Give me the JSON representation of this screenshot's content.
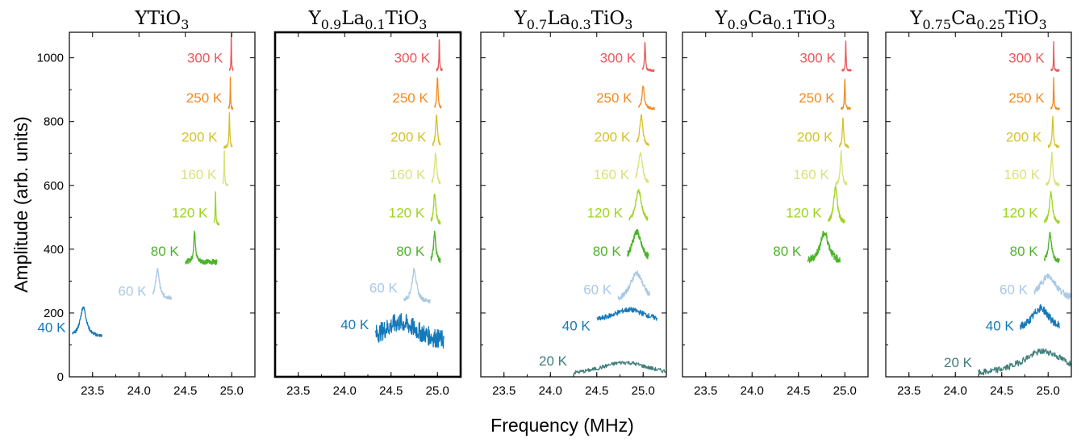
{
  "chart_data": {
    "type": "line",
    "ylabel": "Amplitude (arb. units)",
    "xlabel": "Frequency (MHz)",
    "ylim": [
      0,
      1080
    ],
    "xlim": [
      23.25,
      25.25
    ],
    "xticks": [
      "23.5",
      "24.0",
      "24.5",
      "25.0"
    ],
    "yticks": [
      "0",
      "200",
      "400",
      "600",
      "800",
      "1000"
    ],
    "unit_suffix": "K",
    "colors": {
      "300": "#e8585a",
      "250": "#f28a1e",
      "200": "#d6c227",
      "160": "#d9e27a",
      "120": "#9fd420",
      "80": "#4db32a",
      "60": "#a9c9e6",
      "40": "#1479b9",
      "20": "#3f7e7a"
    },
    "panels": [
      {
        "title_parts": [
          {
            "t": "YTiO"
          },
          {
            "t": "3",
            "sub": true
          }
        ],
        "bold_frame": false,
        "show_yticklabels": true,
        "series": [
          {
            "temp": 300,
            "label": "300 K",
            "label_y": 1000,
            "center": 24.995,
            "fmin": 24.975,
            "fmax": 25.015,
            "base": 960,
            "peak": 1075,
            "width": 0.003,
            "noise": 3,
            "n": 60
          },
          {
            "temp": 250,
            "label": "250 K",
            "label_y": 875,
            "center": 24.985,
            "fmin": 24.965,
            "fmax": 25.01,
            "base": 840,
            "peak": 940,
            "width": 0.003,
            "noise": 4,
            "n": 60
          },
          {
            "temp": 200,
            "label": "200 K",
            "label_y": 753,
            "center": 24.975,
            "fmin": 24.915,
            "fmax": 25.005,
            "base": 720,
            "peak": 825,
            "width": 0.005,
            "noise": 4,
            "n": 80
          },
          {
            "temp": 160,
            "label": "160 K",
            "label_y": 635,
            "center": 24.92,
            "fmin": 24.905,
            "fmax": 24.96,
            "base": 600,
            "peak": 710,
            "width": 0.004,
            "noise": 3,
            "n": 60
          },
          {
            "temp": 120,
            "label": "120 K",
            "label_y": 515,
            "center": 24.825,
            "fmin": 24.81,
            "fmax": 24.865,
            "base": 478,
            "peak": 580,
            "width": 0.004,
            "noise": 4,
            "n": 60
          },
          {
            "temp": 80,
            "label": "80 K",
            "label_y": 395,
            "center": 24.6,
            "fmin": 24.5,
            "fmax": 24.84,
            "base": 360,
            "peak": 455,
            "width": 0.012,
            "noise": 8,
            "n": 140
          },
          {
            "temp": 60,
            "label": "60 K",
            "label_y": 270,
            "center": 24.2,
            "fmin": 24.15,
            "fmax": 24.35,
            "base": 245,
            "peak": 335,
            "width": 0.025,
            "noise": 6,
            "n": 100
          },
          {
            "temp": 40,
            "label": "40 K",
            "label_y": 155,
            "center": 23.4,
            "fmin": 23.28,
            "fmax": 23.6,
            "base": 125,
            "peak": 218,
            "width": 0.04,
            "noise": 5,
            "n": 120
          }
        ]
      },
      {
        "title_parts": [
          {
            "t": "Y"
          },
          {
            "t": "0.9",
            "sub": true
          },
          {
            "t": "La"
          },
          {
            "t": "0.1",
            "sub": true
          },
          {
            "t": "TiO"
          },
          {
            "t": "3",
            "sub": true
          }
        ],
        "bold_frame": true,
        "show_yticklabels": false,
        "series": [
          {
            "temp": 300,
            "label": "300 K",
            "label_y": 1000,
            "center": 25.02,
            "fmin": 24.99,
            "fmax": 25.05,
            "base": 960,
            "peak": 1060,
            "width": 0.004,
            "noise": 4,
            "n": 60
          },
          {
            "temp": 250,
            "label": "250 K",
            "label_y": 875,
            "center": 25.0,
            "fmin": 24.97,
            "fmax": 25.04,
            "base": 840,
            "peak": 940,
            "width": 0.008,
            "noise": 4,
            "n": 60
          },
          {
            "temp": 200,
            "label": "200 K",
            "label_y": 753,
            "center": 24.99,
            "fmin": 24.95,
            "fmax": 25.03,
            "base": 720,
            "peak": 820,
            "width": 0.012,
            "noise": 5,
            "n": 70
          },
          {
            "temp": 160,
            "label": "160 K",
            "label_y": 635,
            "center": 24.98,
            "fmin": 24.94,
            "fmax": 25.03,
            "base": 600,
            "peak": 700,
            "width": 0.014,
            "noise": 6,
            "n": 70
          },
          {
            "temp": 120,
            "label": "120 K",
            "label_y": 515,
            "center": 24.97,
            "fmin": 24.93,
            "fmax": 25.03,
            "base": 478,
            "peak": 578,
            "width": 0.014,
            "noise": 7,
            "n": 70
          },
          {
            "temp": 80,
            "label": "80 K",
            "label_y": 395,
            "center": 24.97,
            "fmin": 24.93,
            "fmax": 25.03,
            "base": 360,
            "peak": 450,
            "width": 0.015,
            "noise": 8,
            "n": 70
          },
          {
            "temp": 60,
            "label": "60 K",
            "label_y": 280,
            "center": 24.75,
            "fmin": 24.64,
            "fmax": 24.92,
            "base": 235,
            "peak": 335,
            "width": 0.03,
            "noise": 7,
            "n": 90
          },
          {
            "temp": 40,
            "label": "40 K",
            "label_y": 165,
            "center": 24.6,
            "fmin": 24.33,
            "fmax": 25.07,
            "base": 100,
            "peak": 170,
            "width": 0.25,
            "noise": 30,
            "n": 220
          }
        ]
      },
      {
        "title_parts": [
          {
            "t": "Y"
          },
          {
            "t": "0.7",
            "sub": true
          },
          {
            "t": "La"
          },
          {
            "t": "0.3",
            "sub": true
          },
          {
            "t": "TiO"
          },
          {
            "t": "3",
            "sub": true
          }
        ],
        "bold_frame": false,
        "show_yticklabels": false,
        "series": [
          {
            "temp": 300,
            "label": "300 K",
            "label_y": 1000,
            "center": 25.02,
            "fmin": 24.99,
            "fmax": 25.12,
            "base": 960,
            "peak": 1050,
            "width": 0.006,
            "noise": 3,
            "n": 70
          },
          {
            "temp": 250,
            "label": "250 K",
            "label_y": 875,
            "center": 25.0,
            "fmin": 24.95,
            "fmax": 25.12,
            "base": 840,
            "peak": 912,
            "width": 0.015,
            "noise": 4,
            "n": 70
          },
          {
            "temp": 200,
            "label": "200 K",
            "label_y": 753,
            "center": 24.98,
            "fmin": 24.93,
            "fmax": 25.06,
            "base": 720,
            "peak": 820,
            "width": 0.02,
            "noise": 5,
            "n": 70
          },
          {
            "temp": 160,
            "label": "160 K",
            "label_y": 635,
            "center": 24.97,
            "fmin": 24.92,
            "fmax": 25.06,
            "base": 600,
            "peak": 700,
            "width": 0.03,
            "noise": 6,
            "n": 70
          },
          {
            "temp": 120,
            "label": "120 K",
            "label_y": 515,
            "center": 24.95,
            "fmin": 24.85,
            "fmax": 25.05,
            "base": 480,
            "peak": 585,
            "width": 0.04,
            "noise": 6,
            "n": 90
          },
          {
            "temp": 80,
            "label": "80 K",
            "label_y": 395,
            "center": 24.93,
            "fmin": 24.83,
            "fmax": 25.06,
            "base": 360,
            "peak": 455,
            "width": 0.06,
            "noise": 10,
            "n": 110
          },
          {
            "temp": 60,
            "label": "60 K",
            "label_y": 275,
            "center": 24.93,
            "fmin": 24.73,
            "fmax": 25.07,
            "base": 230,
            "peak": 325,
            "width": 0.09,
            "noise": 8,
            "n": 120
          },
          {
            "temp": 40,
            "label": "40 K",
            "label_y": 160,
            "center": 24.85,
            "fmin": 24.5,
            "fmax": 25.15,
            "base": 165,
            "peak": 210,
            "width": 0.25,
            "noise": 8,
            "n": 160
          },
          {
            "temp": 20,
            "label": "20 K",
            "label_y": 50,
            "center": 24.8,
            "fmin": 24.25,
            "fmax": 25.25,
            "base": 0,
            "peak": 45,
            "width": 0.35,
            "noise": 6,
            "n": 170
          }
        ]
      },
      {
        "title_parts": [
          {
            "t": "Y"
          },
          {
            "t": "0.9",
            "sub": true
          },
          {
            "t": "Ca"
          },
          {
            "t": "0.1",
            "sub": true
          },
          {
            "t": "TiO"
          },
          {
            "t": "3",
            "sub": true
          }
        ],
        "bold_frame": false,
        "show_yticklabels": false,
        "series": [
          {
            "temp": 300,
            "label": "300 K",
            "label_y": 1000,
            "center": 25.01,
            "fmin": 24.97,
            "fmax": 25.07,
            "base": 960,
            "peak": 1050,
            "width": 0.004,
            "noise": 3,
            "n": 60
          },
          {
            "temp": 250,
            "label": "250 K",
            "label_y": 875,
            "center": 25.0,
            "fmin": 24.96,
            "fmax": 25.06,
            "base": 840,
            "peak": 935,
            "width": 0.005,
            "noise": 4,
            "n": 60
          },
          {
            "temp": 200,
            "label": "200 K",
            "label_y": 753,
            "center": 24.98,
            "fmin": 24.94,
            "fmax": 25.04,
            "base": 720,
            "peak": 815,
            "width": 0.008,
            "noise": 5,
            "n": 60
          },
          {
            "temp": 160,
            "label": "160 K",
            "label_y": 635,
            "center": 24.96,
            "fmin": 24.9,
            "fmax": 25.02,
            "base": 600,
            "peak": 705,
            "width": 0.012,
            "noise": 6,
            "n": 70
          },
          {
            "temp": 120,
            "label": "120 K",
            "label_y": 515,
            "center": 24.9,
            "fmin": 24.82,
            "fmax": 25.0,
            "base": 480,
            "peak": 590,
            "width": 0.025,
            "noise": 8,
            "n": 90
          },
          {
            "temp": 80,
            "label": "80 K",
            "label_y": 395,
            "center": 24.78,
            "fmin": 24.6,
            "fmax": 24.95,
            "base": 355,
            "peak": 450,
            "width": 0.06,
            "noise": 12,
            "n": 130
          }
        ]
      },
      {
        "title_parts": [
          {
            "t": "Y"
          },
          {
            "t": "0.75",
            "sub": true
          },
          {
            "t": "Ca"
          },
          {
            "t": "0.25",
            "sub": true
          },
          {
            "t": "TiO"
          },
          {
            "t": "3",
            "sub": true
          }
        ],
        "bold_frame": false,
        "show_yticklabels": false,
        "series": [
          {
            "temp": 300,
            "label": "300 K",
            "label_y": 1000,
            "center": 25.06,
            "fmin": 25.03,
            "fmax": 25.12,
            "base": 960,
            "peak": 1050,
            "width": 0.003,
            "noise": 3,
            "n": 60
          },
          {
            "temp": 250,
            "label": "250 K",
            "label_y": 875,
            "center": 25.06,
            "fmin": 25.03,
            "fmax": 25.12,
            "base": 840,
            "peak": 935,
            "width": 0.004,
            "noise": 3,
            "n": 60
          },
          {
            "temp": 200,
            "label": "200 K",
            "label_y": 753,
            "center": 25.05,
            "fmin": 25.0,
            "fmax": 25.12,
            "base": 720,
            "peak": 815,
            "width": 0.008,
            "noise": 4,
            "n": 60
          },
          {
            "temp": 160,
            "label": "160 K",
            "label_y": 635,
            "center": 25.04,
            "fmin": 24.98,
            "fmax": 25.12,
            "base": 600,
            "peak": 700,
            "width": 0.012,
            "noise": 5,
            "n": 70
          },
          {
            "temp": 120,
            "label": "120 K",
            "label_y": 515,
            "center": 25.03,
            "fmin": 24.96,
            "fmax": 25.12,
            "base": 480,
            "peak": 575,
            "width": 0.02,
            "noise": 6,
            "n": 70
          },
          {
            "temp": 80,
            "label": "80 K",
            "label_y": 395,
            "center": 25.02,
            "fmin": 24.96,
            "fmax": 25.12,
            "base": 360,
            "peak": 450,
            "width": 0.02,
            "noise": 7,
            "n": 70
          },
          {
            "temp": 60,
            "label": "60 K",
            "label_y": 275,
            "center": 25.0,
            "fmin": 24.85,
            "fmax": 25.25,
            "base": 235,
            "peak": 315,
            "width": 0.12,
            "noise": 10,
            "n": 130
          },
          {
            "temp": 40,
            "label": "40 K",
            "label_y": 160,
            "center": 24.92,
            "fmin": 24.7,
            "fmax": 25.12,
            "base": 140,
            "peak": 215,
            "width": 0.12,
            "noise": 12,
            "n": 130
          },
          {
            "temp": 20,
            "label": "20 K",
            "label_y": 45,
            "center": 24.95,
            "fmin": 24.25,
            "fmax": 25.25,
            "base": 0,
            "peak": 80,
            "width": 0.3,
            "noise": 10,
            "n": 180
          }
        ]
      }
    ]
  }
}
